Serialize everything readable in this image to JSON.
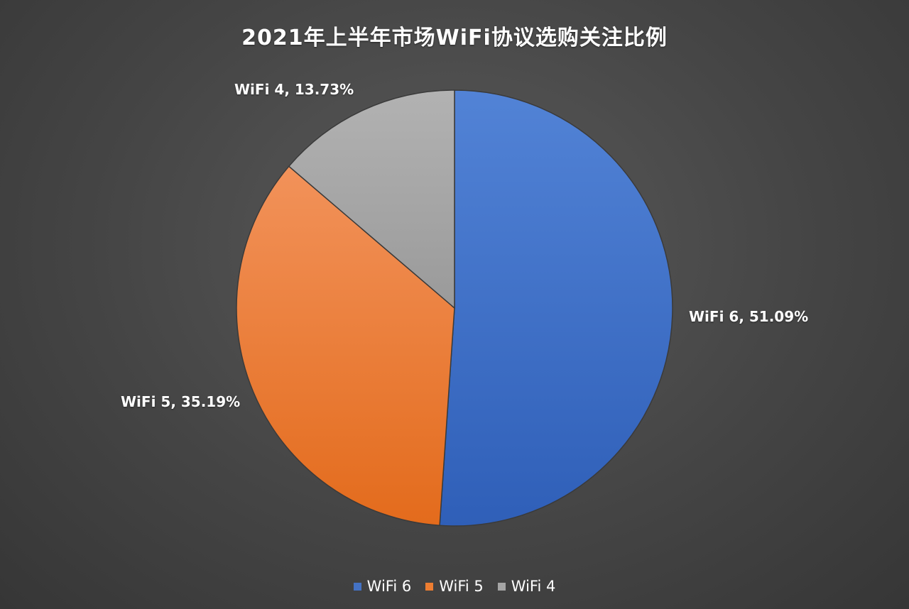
{
  "chart_data": {
    "type": "pie",
    "title": "2021年上半年市场WiFi协议选购关注比例",
    "categories": [
      "WiFi 6",
      "WiFi 5",
      "WiFi 4"
    ],
    "values": [
      51.09,
      35.19,
      13.73
    ],
    "unit": "%",
    "data_labels": [
      "WiFi 6, 51.09%",
      "WiFi 5, 35.19%",
      "WiFi 4, 13.73%"
    ],
    "colors": [
      "#4472C4",
      "#ED7D31",
      "#A5A5A5"
    ],
    "legend": {
      "placement": "bottom",
      "entries": [
        "WiFi 6",
        "WiFi 5",
        "WiFi 4"
      ]
    }
  },
  "background_color": "#454545"
}
